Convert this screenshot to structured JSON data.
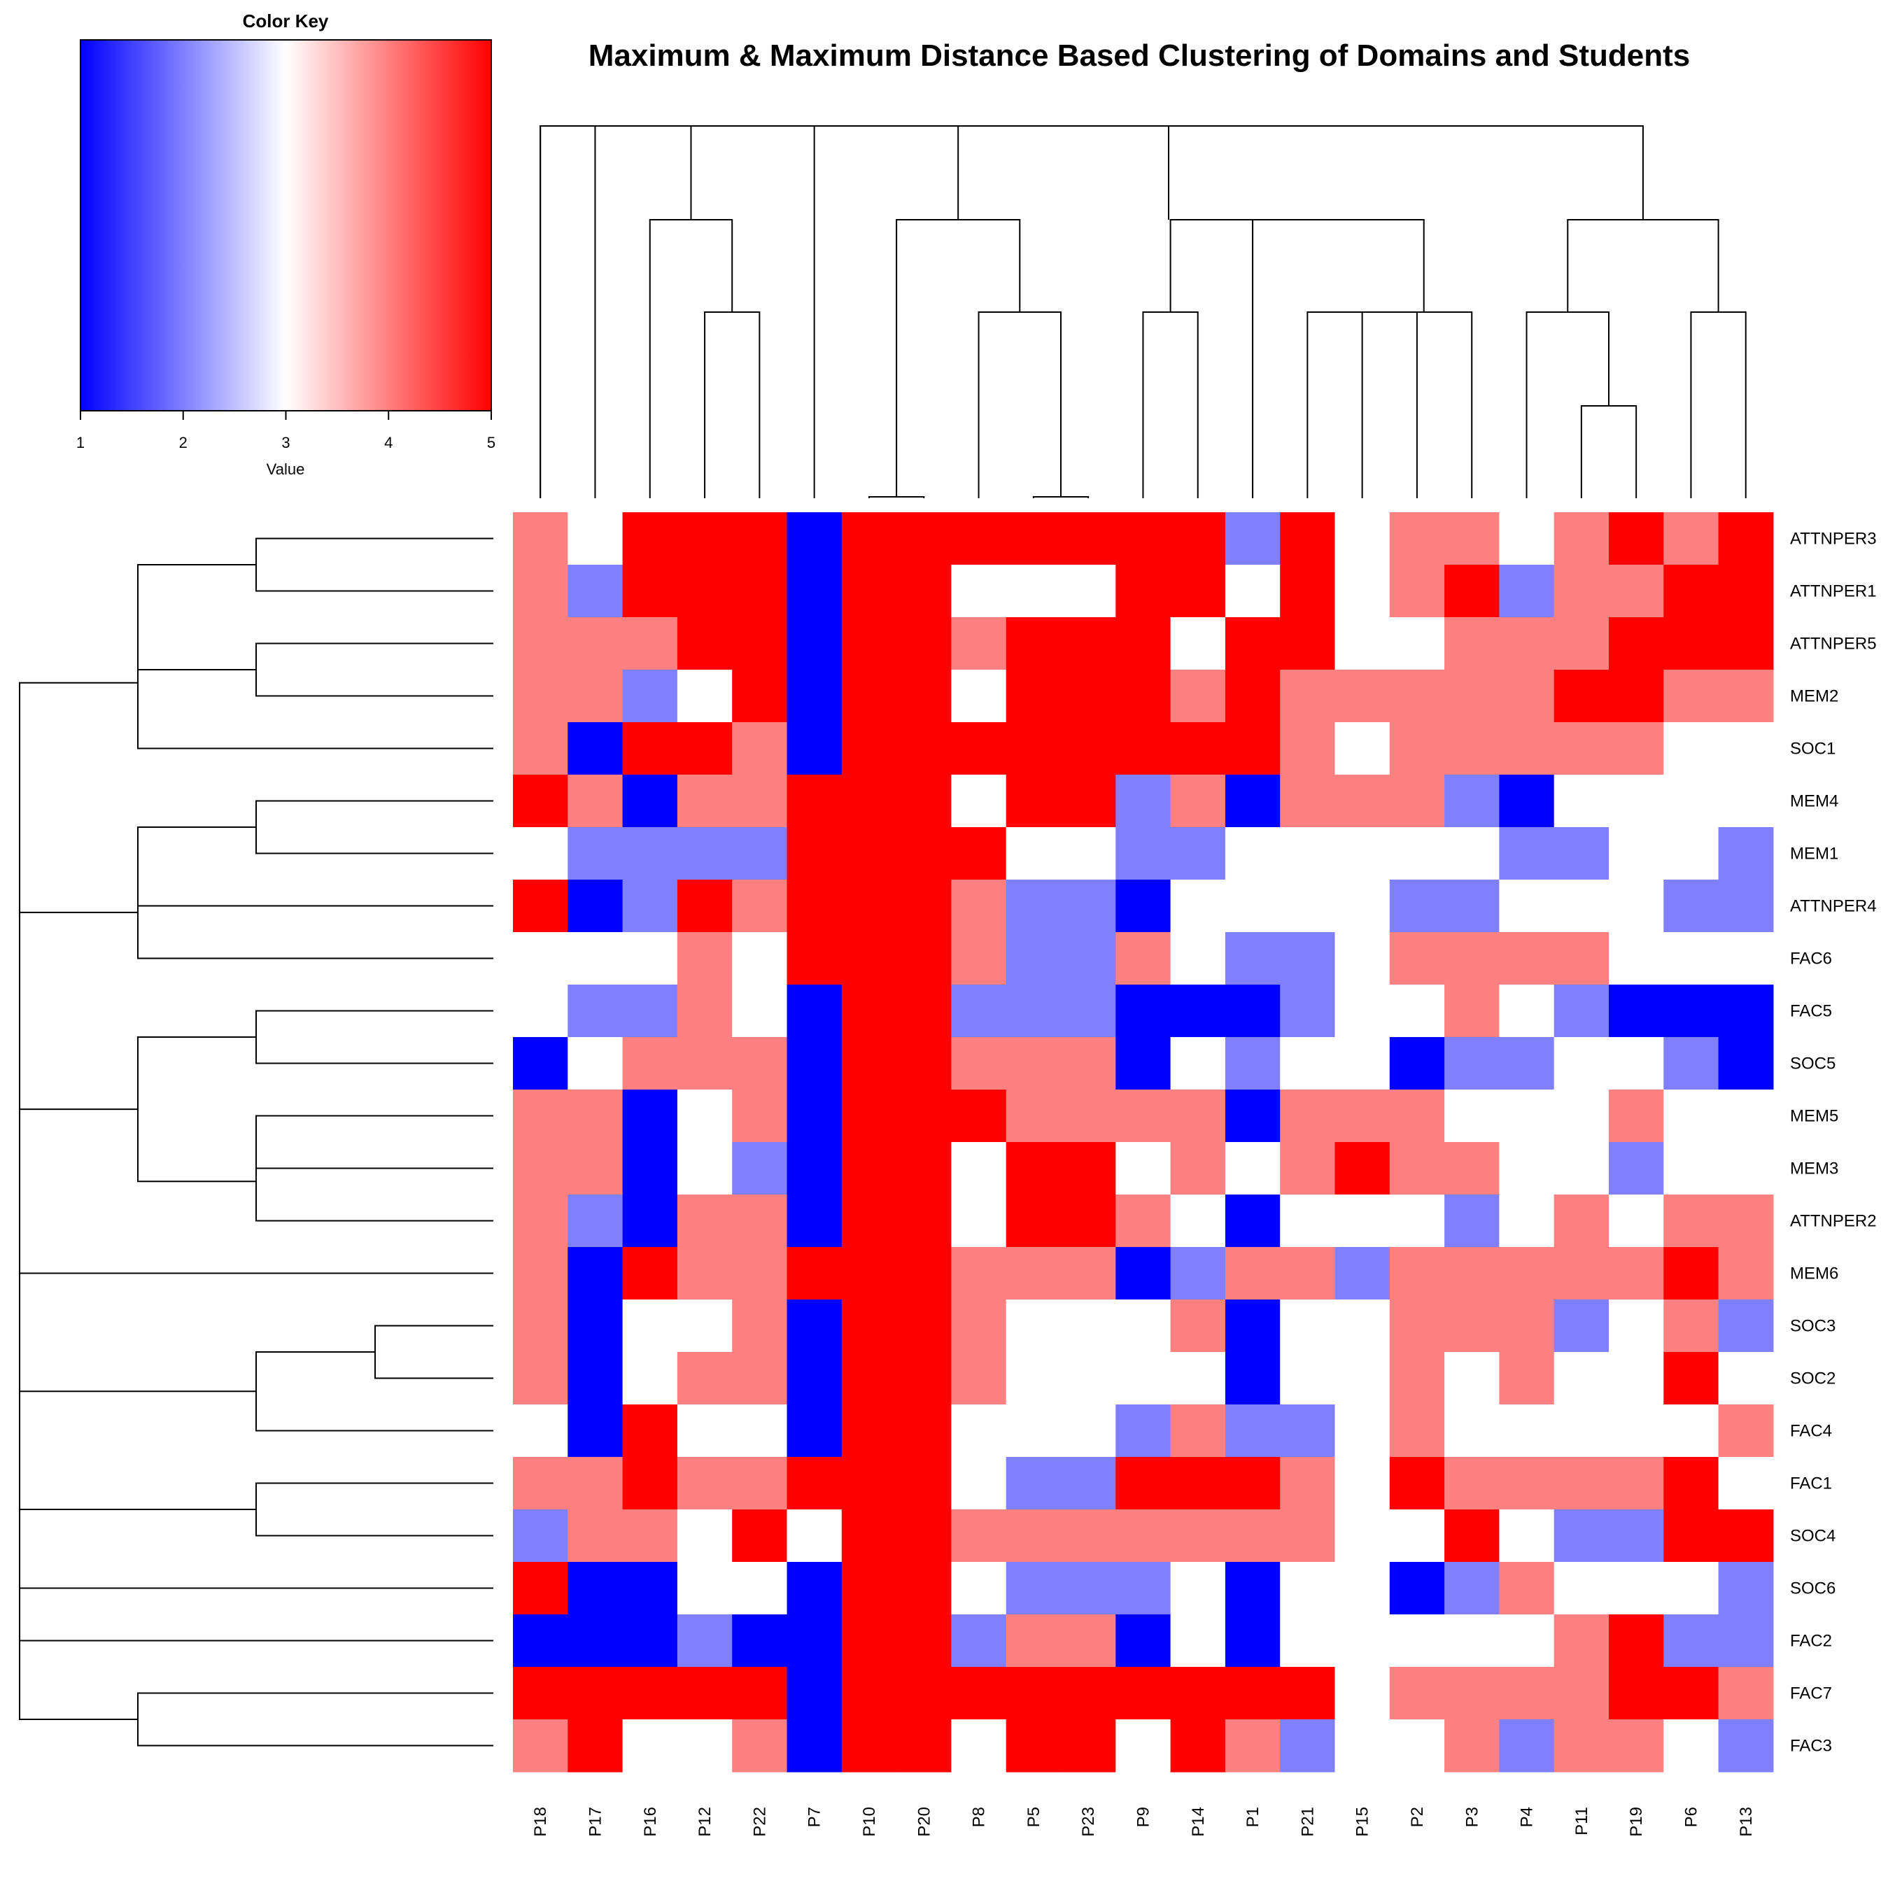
{
  "chart_data": {
    "type": "heatmap",
    "title": "Maximum & Maximum Distance Based Clustering of Domains and Students",
    "color_key": {
      "title": "Color Key",
      "xlabel": "Value",
      "ticks": [
        "1",
        "2",
        "3",
        "4",
        "5"
      ],
      "range": [
        1,
        5
      ],
      "colors": {
        "low": "#0000ff",
        "mid": "#ffffff",
        "high": "#ff0000"
      }
    },
    "columns": [
      "P18",
      "P17",
      "P16",
      "P12",
      "P22",
      "P7",
      "P10",
      "P20",
      "P8",
      "P5",
      "P23",
      "P9",
      "P14",
      "P1",
      "P21",
      "P15",
      "P2",
      "P3",
      "P4",
      "P11",
      "P19",
      "P6",
      "P13"
    ],
    "rows": [
      "ATTNPER3",
      "ATTNPER1",
      "ATTNPER5",
      "MEM2",
      "SOC1",
      "MEM4",
      "MEM1",
      "ATTNPER4",
      "FAC6",
      "FAC5",
      "SOC5",
      "MEM5",
      "MEM3",
      "ATTNPER2",
      "MEM6",
      "SOC3",
      "SOC2",
      "FAC4",
      "FAC1",
      "SOC4",
      "SOC6",
      "FAC2",
      "FAC7",
      "FAC3"
    ],
    "values": [
      [
        4,
        3,
        5,
        5,
        5,
        1,
        5,
        5,
        5,
        5,
        5,
        5,
        5,
        2,
        5,
        3,
        4,
        4,
        3,
        4,
        5,
        4,
        5
      ],
      [
        4,
        2,
        5,
        5,
        5,
        1,
        5,
        5,
        3,
        3,
        3,
        5,
        5,
        3,
        5,
        3,
        4,
        5,
        2,
        4,
        4,
        5,
        5
      ],
      [
        4,
        4,
        4,
        5,
        5,
        1,
        5,
        5,
        4,
        5,
        5,
        5,
        3,
        5,
        5,
        3,
        3,
        4,
        4,
        4,
        5,
        5,
        5
      ],
      [
        4,
        4,
        2,
        3,
        5,
        1,
        5,
        5,
        3,
        5,
        5,
        5,
        4,
        5,
        4,
        4,
        4,
        4,
        4,
        5,
        5,
        4,
        4
      ],
      [
        4,
        1,
        5,
        5,
        4,
        1,
        5,
        5,
        5,
        5,
        5,
        5,
        5,
        5,
        4,
        3,
        4,
        4,
        4,
        4,
        4,
        3,
        3
      ],
      [
        5,
        4,
        1,
        4,
        4,
        5,
        5,
        5,
        3,
        5,
        5,
        2,
        4,
        1,
        4,
        4,
        4,
        2,
        1,
        3,
        3,
        3,
        3
      ],
      [
        3,
        2,
        2,
        2,
        2,
        5,
        5,
        5,
        5,
        3,
        3,
        2,
        2,
        3,
        3,
        3,
        3,
        3,
        2,
        2,
        3,
        3,
        2
      ],
      [
        5,
        1,
        2,
        5,
        4,
        5,
        5,
        5,
        4,
        2,
        2,
        1,
        3,
        3,
        3,
        3,
        2,
        2,
        3,
        3,
        3,
        2,
        2
      ],
      [
        3,
        3,
        3,
        4,
        3,
        5,
        5,
        5,
        4,
        2,
        2,
        4,
        3,
        2,
        2,
        3,
        4,
        4,
        4,
        4,
        3,
        3,
        3
      ],
      [
        3,
        2,
        2,
        4,
        3,
        1,
        5,
        5,
        2,
        2,
        2,
        1,
        1,
        1,
        2,
        3,
        3,
        4,
        3,
        2,
        1,
        1,
        1
      ],
      [
        1,
        3,
        4,
        4,
        4,
        1,
        5,
        5,
        4,
        4,
        4,
        1,
        3,
        2,
        3,
        3,
        1,
        2,
        2,
        3,
        3,
        2,
        1
      ],
      [
        4,
        4,
        1,
        3,
        4,
        1,
        5,
        5,
        5,
        4,
        4,
        4,
        4,
        1,
        4,
        4,
        4,
        3,
        3,
        3,
        4,
        3,
        3
      ],
      [
        4,
        4,
        1,
        3,
        2,
        1,
        5,
        5,
        3,
        5,
        5,
        3,
        4,
        3,
        4,
        5,
        4,
        4,
        3,
        3,
        2,
        3,
        3
      ],
      [
        4,
        2,
        1,
        4,
        4,
        1,
        5,
        5,
        3,
        5,
        5,
        4,
        3,
        1,
        3,
        3,
        3,
        2,
        3,
        4,
        3,
        4,
        4
      ],
      [
        4,
        1,
        5,
        4,
        4,
        5,
        5,
        5,
        4,
        4,
        4,
        1,
        2,
        4,
        4,
        2,
        4,
        4,
        4,
        4,
        4,
        5,
        4
      ],
      [
        4,
        1,
        3,
        3,
        4,
        1,
        5,
        5,
        4,
        3,
        3,
        3,
        4,
        1,
        3,
        3,
        4,
        4,
        4,
        2,
        3,
        4,
        2
      ],
      [
        4,
        1,
        3,
        4,
        4,
        1,
        5,
        5,
        4,
        3,
        3,
        3,
        3,
        1,
        3,
        3,
        4,
        3,
        4,
        3,
        3,
        5,
        3
      ],
      [
        3,
        1,
        5,
        3,
        3,
        1,
        5,
        5,
        3,
        3,
        3,
        2,
        4,
        2,
        2,
        3,
        4,
        3,
        3,
        3,
        3,
        3,
        4
      ],
      [
        4,
        4,
        5,
        4,
        4,
        5,
        5,
        5,
        3,
        2,
        2,
        5,
        5,
        5,
        4,
        3,
        5,
        4,
        4,
        4,
        4,
        5,
        3
      ],
      [
        2,
        4,
        4,
        3,
        5,
        3,
        5,
        5,
        4,
        4,
        4,
        4,
        4,
        4,
        4,
        3,
        3,
        5,
        3,
        2,
        2,
        5,
        5
      ],
      [
        5,
        1,
        1,
        3,
        3,
        1,
        5,
        5,
        3,
        2,
        2,
        2,
        3,
        1,
        3,
        3,
        1,
        2,
        4,
        3,
        3,
        3,
        2
      ],
      [
        1,
        1,
        1,
        2,
        1,
        1,
        5,
        5,
        2,
        4,
        4,
        1,
        3,
        1,
        3,
        3,
        3,
        3,
        3,
        4,
        5,
        2,
        2
      ],
      [
        5,
        5,
        5,
        5,
        5,
        1,
        5,
        5,
        5,
        5,
        5,
        5,
        5,
        5,
        5,
        3,
        4,
        4,
        4,
        4,
        5,
        5,
        4
      ],
      [
        4,
        5,
        3,
        3,
        4,
        1,
        5,
        5,
        3,
        5,
        5,
        3,
        5,
        4,
        2,
        3,
        3,
        4,
        2,
        4,
        4,
        3,
        2
      ]
    ]
  }
}
